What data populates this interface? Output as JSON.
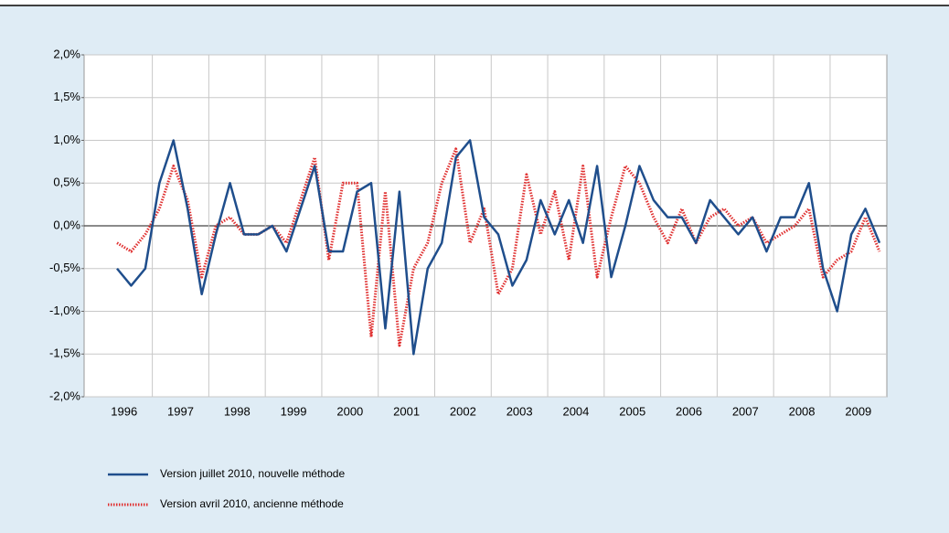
{
  "chart_data": {
    "type": "line",
    "categories": [
      "1996",
      null,
      null,
      null,
      "1997",
      null,
      null,
      null,
      "1998",
      null,
      null,
      null,
      "1999",
      null,
      null,
      null,
      "2000",
      null,
      null,
      null,
      "2001",
      null,
      null,
      null,
      "2002",
      null,
      null,
      null,
      "2003",
      null,
      null,
      null,
      "2004",
      null,
      null,
      null,
      "2005",
      null,
      null,
      null,
      "2006",
      null,
      null,
      null,
      "2007",
      null,
      null,
      null,
      "2008",
      null,
      null,
      null,
      "2009",
      null,
      null
    ],
    "series": [
      {
        "name": "Version juillet 2010, nouvelle méthode",
        "color": "#1f4e8c",
        "style": "solid",
        "values": [
          -0.5,
          -0.7,
          -0.5,
          0.5,
          1.0,
          0.2,
          -0.8,
          -0.1,
          0.5,
          -0.1,
          -0.1,
          0.0,
          -0.3,
          0.2,
          0.7,
          -0.3,
          -0.3,
          0.4,
          0.5,
          -1.2,
          0.4,
          -1.5,
          -0.5,
          -0.2,
          0.8,
          1.0,
          0.1,
          -0.1,
          -0.7,
          -0.4,
          0.3,
          -0.1,
          0.3,
          -0.2,
          0.7,
          -0.6,
          0.0,
          0.7,
          0.3,
          0.1,
          0.1,
          -0.2,
          0.3,
          0.1,
          -0.1,
          0.1,
          -0.3,
          0.1,
          0.1,
          0.5,
          -0.5,
          -1.0,
          -0.1,
          0.2,
          -0.2
        ]
      },
      {
        "name": "Version avril 2010, ancienne méthode",
        "color": "#e03030",
        "style": "dotted",
        "values": [
          -0.2,
          -0.3,
          -0.1,
          0.2,
          0.7,
          0.3,
          -0.6,
          0.0,
          0.1,
          -0.1,
          -0.1,
          0.0,
          -0.2,
          0.3,
          0.8,
          -0.4,
          0.5,
          0.5,
          -1.3,
          0.4,
          -1.4,
          -0.5,
          -0.2,
          0.5,
          0.9,
          -0.2,
          0.2,
          -0.8,
          -0.5,
          0.6,
          -0.1,
          0.4,
          -0.4,
          0.7,
          -0.6,
          0.1,
          0.7,
          0.5,
          0.1,
          -0.2,
          0.2,
          -0.2,
          0.1,
          0.2,
          0.0,
          0.1,
          -0.2,
          -0.1,
          0.0,
          0.2,
          -0.6,
          -0.4,
          -0.3,
          0.1,
          -0.3
        ]
      }
    ],
    "ylim": [
      -2,
      2
    ],
    "yticks": [
      {
        "value": -2,
        "label": "-2,0%"
      },
      {
        "value": -1.5,
        "label": "-1,5%"
      },
      {
        "value": -1,
        "label": "-1,0%"
      },
      {
        "value": -0.5,
        "label": "-0,5%"
      },
      {
        "value": 0,
        "label": "0,0%"
      },
      {
        "value": 0.5,
        "label": "0,5%"
      },
      {
        "value": 1,
        "label": "1,0%"
      },
      {
        "value": 1.5,
        "label": "1,5%"
      },
      {
        "value": 2,
        "label": "2,0%"
      }
    ],
    "grid": true
  }
}
